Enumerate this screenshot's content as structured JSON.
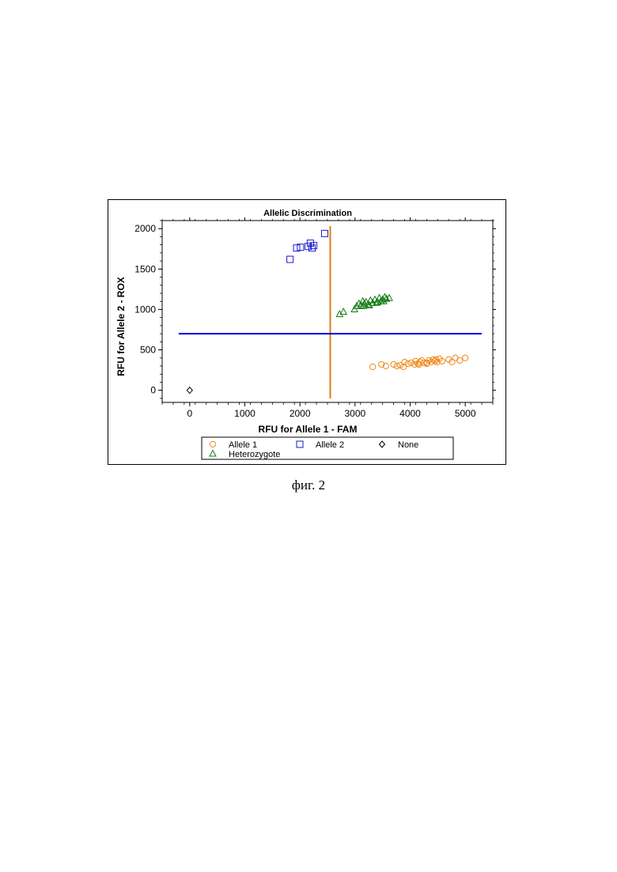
{
  "caption": "фиг. 2",
  "chart_data": {
    "type": "scatter",
    "title": "Allelic Discrimination",
    "xlabel": "RFU for Allele 1 - FAM",
    "ylabel": "RFU for Allele 2 - ROX",
    "xlim": [
      -500,
      5500
    ],
    "ylim": [
      -150,
      2100
    ],
    "xticks": [
      0,
      1000,
      2000,
      3000,
      4000,
      5000
    ],
    "yticks": [
      0,
      500,
      1000,
      1500,
      2000
    ],
    "grid": false,
    "threshold_lines": [
      {
        "orientation": "vertical",
        "x": 2550,
        "y_from": -100,
        "y_to": 2030,
        "color": "#e07b10"
      },
      {
        "orientation": "horizontal",
        "y": 700,
        "x_from": -200,
        "x_to": 5300,
        "color": "#0000e0"
      }
    ],
    "legend": {
      "placement": "bottom",
      "entries": [
        {
          "label": "Allele 1",
          "marker": "circle",
          "color": "#f08a1c"
        },
        {
          "label": "Allele 2",
          "marker": "square",
          "color": "#1a1acc"
        },
        {
          "label": "None",
          "marker": "diamond",
          "color": "#000000"
        },
        {
          "label": "Heterozygote",
          "marker": "triangle",
          "color": "#137a13"
        }
      ]
    },
    "series": [
      {
        "name": "Allele 1",
        "marker": "circle",
        "color": "#f08a1c",
        "x": [
          3320,
          3480,
          3560,
          3700,
          3760,
          3820,
          3900,
          3960,
          4020,
          4080,
          4100,
          4140,
          4180,
          4210,
          4250,
          4300,
          4340,
          4380,
          4420,
          4450,
          4490,
          4530,
          4580,
          4700,
          4760,
          4820,
          4900,
          5000,
          3880,
          4160,
          4310,
          4470
        ],
        "y": [
          290,
          320,
          300,
          320,
          300,
          310,
          350,
          330,
          340,
          320,
          360,
          330,
          350,
          370,
          340,
          330,
          370,
          350,
          380,
          360,
          350,
          390,
          360,
          380,
          350,
          400,
          370,
          400,
          290,
          320,
          340,
          380
        ]
      },
      {
        "name": "Allele 2",
        "marker": "square",
        "color": "#1a1acc",
        "x": [
          1820,
          1940,
          2010,
          2150,
          2190,
          2220,
          2250,
          2450
        ],
        "y": [
          1620,
          1760,
          1770,
          1780,
          1820,
          1760,
          1790,
          1940
        ]
      },
      {
        "name": "None",
        "marker": "diamond",
        "color": "#000000",
        "x": [
          0
        ],
        "y": [
          0
        ]
      },
      {
        "name": "Heterozygote",
        "marker": "triangle",
        "color": "#137a13",
        "x": [
          2720,
          2790,
          2990,
          3030,
          3070,
          3110,
          3140,
          3170,
          3200,
          3240,
          3280,
          3320,
          3360,
          3410,
          3440,
          3470,
          3500,
          3540,
          3570,
          3620,
          3150,
          3260,
          3390,
          3520
        ],
        "y": [
          940,
          970,
          1000,
          1040,
          1070,
          1050,
          1100,
          1070,
          1090,
          1060,
          1110,
          1080,
          1120,
          1090,
          1140,
          1100,
          1120,
          1150,
          1130,
          1140,
          1040,
          1050,
          1080,
          1100
        ]
      }
    ]
  }
}
